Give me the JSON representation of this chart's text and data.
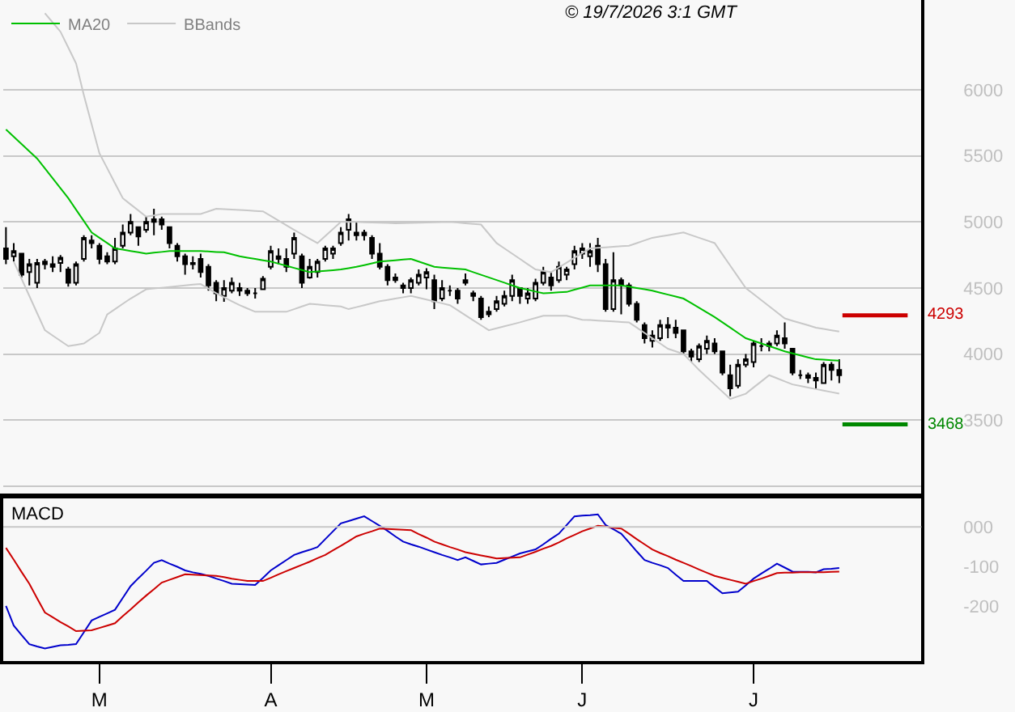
{
  "chart_data": [
    {
      "type": "candlestick",
      "color": "#000000",
      "annotations": [
        "© 19/7/2026 3:1 GMT"
      ],
      "legend": "top left",
      "grid": "y",
      "categories": [
        null,
        null,
        null,
        null,
        null,
        null,
        null,
        null,
        null,
        null,
        null,
        null,
        null,
        null,
        null,
        null,
        null,
        null,
        null,
        null,
        null,
        null,
        null,
        null,
        null,
        null,
        null,
        null,
        null,
        null,
        null,
        null,
        null,
        null,
        null,
        null,
        null,
        null,
        null,
        null,
        null,
        null,
        null,
        null,
        null,
        null,
        null,
        null,
        null,
        null,
        null,
        null,
        null,
        null,
        null,
        null,
        null,
        null,
        null,
        null,
        null,
        null,
        null,
        null,
        null,
        null,
        null,
        null,
        null,
        null,
        null,
        null,
        null,
        null,
        null,
        null,
        null,
        null,
        null,
        null,
        null,
        null,
        null,
        null,
        null,
        null,
        null,
        null,
        null,
        null,
        null,
        null,
        null,
        null,
        null,
        null,
        null,
        null,
        null,
        null,
        null,
        null,
        null,
        null,
        null,
        null,
        null,
        null
      ],
      "ohlc": [
        [
          4800,
          4960,
          4680,
          4720
        ],
        [
          4740,
          4840,
          4700,
          4780
        ],
        [
          4760,
          4760,
          4580,
          4600
        ],
        [
          4620,
          4720,
          4520,
          4680
        ],
        [
          4540,
          4720,
          4500,
          4690
        ],
        [
          4680,
          4720,
          4640,
          4700
        ],
        [
          4660,
          4740,
          4620,
          4680
        ],
        [
          4690,
          4750,
          4620,
          4730
        ],
        [
          4640,
          4660,
          4510,
          4540
        ],
        [
          4540,
          4700,
          4520,
          4680
        ],
        [
          4720,
          4900,
          4700,
          4880
        ],
        [
          4860,
          4900,
          4800,
          4840
        ],
        [
          4820,
          4840,
          4680,
          4720
        ],
        [
          4740,
          4770,
          4680,
          4700
        ],
        [
          4700,
          4880,
          4680,
          4800
        ],
        [
          4820,
          4980,
          4800,
          4920
        ],
        [
          4920,
          5060,
          4900,
          5000
        ],
        [
          4960,
          4960,
          4820,
          4890
        ],
        [
          4940,
          5040,
          4920,
          5000
        ],
        [
          5000,
          5100,
          4900,
          5020
        ],
        [
          5020,
          5040,
          4940,
          4980
        ],
        [
          4960,
          4960,
          4800,
          4840
        ],
        [
          4820,
          4840,
          4700,
          4740
        ],
        [
          4740,
          4760,
          4600,
          4680
        ],
        [
          4680,
          4740,
          4640,
          4690
        ],
        [
          4720,
          4760,
          4580,
          4620
        ],
        [
          4660,
          4680,
          4480,
          4520
        ],
        [
          4540,
          4560,
          4400,
          4460
        ],
        [
          4440,
          4560,
          4396,
          4500
        ],
        [
          4480,
          4580,
          4460,
          4540
        ],
        [
          4500,
          4540,
          4440,
          4480
        ],
        [
          4480,
          4500,
          4440,
          4460
        ],
        [
          4460,
          4500,
          4420,
          4460
        ],
        [
          4490,
          4590,
          4490,
          4570
        ],
        [
          4660,
          4820,
          4640,
          4780
        ],
        [
          4740,
          4800,
          4680,
          4720
        ],
        [
          4720,
          4800,
          4620,
          4660
        ],
        [
          4760,
          4920,
          4720,
          4880
        ],
        [
          4740,
          4760,
          4500,
          4540
        ],
        [
          4580,
          4720,
          4570,
          4660
        ],
        [
          4620,
          4720,
          4580,
          4700
        ],
        [
          4720,
          4820,
          4700,
          4800
        ],
        [
          4760,
          4820,
          4720,
          4800
        ],
        [
          4840,
          4960,
          4820,
          4920
        ],
        [
          4940,
          5060,
          4860,
          5020
        ],
        [
          4900,
          5000,
          4860,
          4920
        ],
        [
          4920,
          4940,
          4860,
          4900
        ],
        [
          4880,
          4900,
          4720,
          4760
        ],
        [
          4760,
          4840,
          4640,
          4660
        ],
        [
          4660,
          4680,
          4520,
          4560
        ],
        [
          4560,
          4610,
          4540,
          4580
        ],
        [
          4520,
          4540,
          4460,
          4500
        ],
        [
          4500,
          4580,
          4460,
          4560
        ],
        [
          4540,
          4640,
          4520,
          4600
        ],
        [
          4580,
          4650,
          4490,
          4620
        ],
        [
          4560,
          4600,
          4340,
          4400
        ],
        [
          4420,
          4560,
          4400,
          4500
        ],
        [
          4480,
          4520,
          4440,
          4480
        ],
        [
          4480,
          4500,
          4380,
          4420
        ],
        [
          4540,
          4610,
          4520,
          4560
        ],
        [
          4460,
          4480,
          4400,
          4440
        ],
        [
          4420,
          4440,
          4260,
          4280
        ],
        [
          4300,
          4360,
          4280,
          4320
        ],
        [
          4340,
          4440,
          4320,
          4400
        ],
        [
          4380,
          4480,
          4360,
          4440
        ],
        [
          4440,
          4600,
          4400,
          4560
        ],
        [
          4500,
          4500,
          4380,
          4440
        ],
        [
          4420,
          4500,
          4380,
          4460
        ],
        [
          4420,
          4570,
          4400,
          4540
        ],
        [
          4540,
          4660,
          4520,
          4620
        ],
        [
          4580,
          4620,
          4480,
          4520
        ],
        [
          4560,
          4700,
          4540,
          4660
        ],
        [
          4600,
          4660,
          4560,
          4640
        ],
        [
          4680,
          4820,
          4640,
          4780
        ],
        [
          4760,
          4840,
          4720,
          4800
        ],
        [
          4740,
          4840,
          4660,
          4780
        ],
        [
          4820,
          4880,
          4620,
          4680
        ],
        [
          4680,
          4720,
          4320,
          4340
        ],
        [
          4340,
          4770,
          4320,
          4560
        ],
        [
          4560,
          4580,
          4300,
          4520
        ],
        [
          4520,
          4540,
          4360,
          4380
        ],
        [
          4380,
          4400,
          4240,
          4260
        ],
        [
          4220,
          4240,
          4080,
          4120
        ],
        [
          4100,
          4180,
          4050,
          4140
        ],
        [
          4120,
          4260,
          4100,
          4220
        ],
        [
          4220,
          4280,
          4120,
          4200
        ],
        [
          4200,
          4260,
          4120,
          4160
        ],
        [
          4180,
          4180,
          4000,
          4020
        ],
        [
          4020,
          4040,
          3940,
          3980
        ],
        [
          3960,
          4080,
          3940,
          4060
        ],
        [
          4040,
          4140,
          4000,
          4100
        ],
        [
          4080,
          4120,
          4000,
          4020
        ],
        [
          4020,
          4020,
          3840,
          3860
        ],
        [
          3840,
          3920,
          3680,
          3740
        ],
        [
          3760,
          3960,
          3740,
          3920
        ],
        [
          3920,
          4000,
          3900,
          3960
        ],
        [
          3940,
          4100,
          3900,
          4080
        ],
        [
          4060,
          4120,
          4020,
          4060
        ],
        [
          4060,
          4100,
          4020,
          4080
        ],
        [
          4080,
          4180,
          4060,
          4140
        ],
        [
          4120,
          4240,
          4040,
          4080
        ],
        [
          4040,
          4040,
          3840,
          3860
        ],
        [
          3840,
          3880,
          3810,
          3840
        ],
        [
          3840,
          3860,
          3780,
          3820
        ],
        [
          3820,
          3860,
          3740,
          3800
        ],
        [
          3780,
          3940,
          3780,
          3920
        ],
        [
          3920,
          3940,
          3800,
          3880
        ],
        [
          3880,
          3960,
          3780,
          3840
        ]
      ],
      "series": [
        {
          "type": "line",
          "name": "MA20",
          "color": "#00c000",
          "values": [
            5700,
            5645,
            5590,
            5535,
            5480,
            5405,
            5330,
            5255,
            5180,
            5093,
            5007,
            4920,
            4880,
            4840,
            4800,
            4790,
            4780,
            4770,
            4760,
            4767,
            4773,
            4780,
            4780,
            4780,
            4780,
            4780,
            4777,
            4773,
            4770,
            4755,
            4740,
            4730,
            4720,
            4710,
            4700,
            4684,
            4668,
            4652,
            4636,
            4620,
            4625,
            4630,
            4635,
            4640,
            4650,
            4660,
            4673,
            4687,
            4700,
            4705,
            4710,
            4715,
            4720,
            4700,
            4680,
            4660,
            4655,
            4650,
            4645,
            4640,
            4620,
            4600,
            4580,
            4560,
            4540,
            4520,
            4500,
            4487,
            4473,
            4460,
            4463,
            4467,
            4470,
            4487,
            4503,
            4520,
            4520,
            4520,
            4520,
            4520,
            4510,
            4500,
            4490,
            4480,
            4465,
            4450,
            4435,
            4420,
            4385,
            4350,
            4315,
            4280,
            4240,
            4200,
            4160,
            4120,
            4100,
            4080,
            4060,
            4040,
            4020,
            4005,
            3990,
            3975,
            3960,
            3957,
            3953,
            3950
          ]
        },
        {
          "type": "line",
          "name": "BBands",
          "color": "#c8c8c8",
          "values": [
            null,
            null,
            null,
            null,
            null,
            6580,
            6510,
            6440,
            6320,
            6200,
            5960,
            5740,
            5520,
            5407,
            5293,
            5180,
            5133,
            5087,
            5040,
            5050,
            5060,
            5060,
            5060,
            5060,
            5060,
            5060,
            5080,
            5100,
            5097,
            5093,
            5090,
            5087,
            5083,
            5080,
            5045,
            5010,
            4975,
            4940,
            4907,
            4873,
            4840,
            4893,
            4947,
            5000,
            5000,
            5000,
            4998,
            4996,
            4994,
            4992,
            4990,
            4991,
            4993,
            4994,
            4996,
            4997,
            4999,
            5000,
            4995,
            4990,
            4985,
            4980,
            4910,
            4840,
            4800,
            4760,
            4720,
            4680,
            4640,
            4630,
            4620,
            4656,
            4692,
            4728,
            4764,
            4800,
            4804,
            4808,
            4812,
            4816,
            4820,
            4840,
            4860,
            4880,
            4890,
            4900,
            4910,
            4920,
            4900,
            4880,
            4860,
            4840,
            4755,
            4670,
            4585,
            4500,
            4454,
            4408,
            4362,
            4316,
            4270,
            4252,
            4235,
            4218,
            4200,
            4190,
            4180,
            4170
          ]
        },
        {
          "type": "line",
          "color": "#c8c8c8",
          "values": [
            null,
            4700,
            4570,
            4440,
            4310,
            4180,
            4140,
            4100,
            4060,
            4070,
            4080,
            4120,
            4160,
            4300,
            4340,
            4380,
            4420,
            4455,
            4490,
            4496,
            4502,
            4508,
            4514,
            4520,
            4525,
            4530,
            4495,
            4460,
            4430,
            4400,
            4370,
            4345,
            4320,
            4320,
            4320,
            4320,
            4320,
            4340,
            4360,
            4380,
            4375,
            4370,
            4365,
            4360,
            4340,
            4355,
            4370,
            4385,
            4400,
            4410,
            4420,
            4430,
            4440,
            4426,
            4412,
            4398,
            4384,
            4370,
            4332,
            4294,
            4256,
            4218,
            4180,
            4195,
            4210,
            4225,
            4240,
            4257,
            4273,
            4290,
            4290,
            4290,
            4290,
            4275,
            4260,
            4257,
            4253,
            4250,
            4247,
            4243,
            4240,
            4200,
            4160,
            4120,
            4080,
            4040,
            4020,
            4000,
            3940,
            3880,
            3825,
            3770,
            3715,
            3660,
            3680,
            3700,
            3747,
            3793,
            3840,
            3817,
            3793,
            3770,
            3758,
            3747,
            3735,
            3723,
            3712,
            3700
          ]
        }
      ],
      "ylim": [
        2930,
        6680
      ],
      "yticks": [
        6000,
        5500,
        5000,
        4500,
        4000,
        3500,
        {
          "value": 3000,
          "label": null
        }
      ],
      "ref_lines": [
        {
          "axis": "y",
          "value": 4293,
          "label": "4293",
          "color": "#cc0000"
        },
        {
          "axis": "y",
          "value": 3468,
          "label": "3468",
          "color": "#008800"
        }
      ]
    },
    {
      "type": "line",
      "title": "MACD",
      "categories": [
        null,
        null,
        null,
        null,
        null,
        null,
        null,
        null,
        null,
        null,
        null,
        null,
        "M",
        null,
        null,
        null,
        null,
        null,
        null,
        null,
        null,
        null,
        null,
        null,
        null,
        null,
        null,
        null,
        null,
        null,
        null,
        null,
        null,
        null,
        "A",
        null,
        null,
        null,
        null,
        null,
        null,
        null,
        null,
        null,
        null,
        null,
        null,
        null,
        null,
        null,
        null,
        null,
        null,
        null,
        "M",
        null,
        null,
        null,
        null,
        null,
        null,
        null,
        null,
        null,
        null,
        null,
        null,
        null,
        null,
        null,
        null,
        null,
        null,
        null,
        "J",
        null,
        null,
        null,
        null,
        null,
        null,
        null,
        null,
        null,
        null,
        null,
        null,
        null,
        null,
        null,
        null,
        null,
        null,
        null,
        null,
        null,
        "J",
        null,
        null,
        null,
        null,
        null,
        null,
        null,
        null,
        null,
        null,
        null
      ],
      "series": [
        {
          "color": "#0000cc",
          "values": [
            -200,
            -250,
            -274,
            -297,
            -303,
            -308,
            -304,
            -300,
            -299,
            -297,
            -267,
            -237,
            -228,
            -219,
            -210,
            -180,
            -150,
            -130,
            -111,
            -91,
            -84,
            -93,
            -101,
            -110,
            -115,
            -119,
            -124,
            -131,
            -137,
            -144,
            -145,
            -146,
            -147,
            -129,
            -110,
            -97,
            -84,
            -71,
            -64,
            -58,
            -51,
            -31,
            -11,
            9,
            15,
            21,
            27,
            15,
            3,
            -10,
            -24,
            -37,
            -44,
            -50,
            -57,
            -64,
            -71,
            -77,
            -84,
            -77,
            -86,
            -95,
            -93,
            -91,
            -83,
            -75,
            -67,
            -62,
            -57,
            -44,
            -30,
            -17,
            5,
            27,
            29,
            30,
            32,
            5,
            -6,
            -17,
            -39,
            -62,
            -84,
            -91,
            -97,
            -104,
            -121,
            -137,
            -137,
            -137,
            -137,
            -153,
            -168,
            -166,
            -164,
            -148,
            -131,
            -118,
            -106,
            -93,
            -103,
            -113,
            -114,
            -114,
            -115,
            -107,
            -106,
            -104
          ]
        },
        {
          "color": "#cc0000",
          "values": [
            -53,
            -83,
            -114,
            -144,
            -181,
            -217,
            -229,
            -241,
            -252,
            -264,
            -263,
            -262,
            -256,
            -250,
            -244,
            -226,
            -209,
            -191,
            -174,
            -158,
            -141,
            -134,
            -127,
            -120,
            -121,
            -122,
            -123,
            -124,
            -127,
            -131,
            -134,
            -137,
            -137,
            -137,
            -129,
            -120,
            -112,
            -104,
            -96,
            -88,
            -79,
            -71,
            -59,
            -48,
            -36,
            -24,
            -17,
            -11,
            -4,
            -5,
            -6,
            -7,
            -8,
            -18,
            -27,
            -37,
            -44,
            -51,
            -57,
            -64,
            -68,
            -72,
            -76,
            -80,
            -79,
            -78,
            -77,
            -70,
            -63,
            -55,
            -48,
            -39,
            -29,
            -20,
            -11,
            -4,
            3,
            1,
            -2,
            -4,
            -17,
            -31,
            -44,
            -57,
            -66,
            -74,
            -83,
            -91,
            -99,
            -108,
            -116,
            -124,
            -129,
            -134,
            -139,
            -144,
            -137,
            -131,
            -124,
            -117,
            -116,
            -116,
            -115,
            -115,
            -115,
            -115,
            -114,
            -113
          ]
        }
      ],
      "ylim": [
        -340,
        76
      ],
      "yticks": [
        {
          "value": 0,
          "label": "000"
        },
        -100,
        -200
      ],
      "ref_lines": [
        {
          "axis": "y",
          "value": 0,
          "color": "#c8c8c8"
        }
      ]
    }
  ]
}
